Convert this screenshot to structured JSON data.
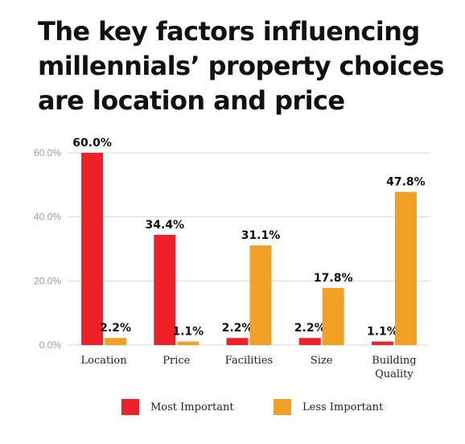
{
  "title_lines": [
    "The key factors influencing",
    "millennials’ property choices",
    "are location and price"
  ],
  "colors": {
    "most_important": "#ED2127",
    "less_important": "#F0A024",
    "grid": "#d9d9d9",
    "axis_text": "#9a9a9a"
  },
  "chart_data": {
    "type": "bar",
    "categories": [
      [
        "Location"
      ],
      [
        "Price"
      ],
      [
        "Facilities"
      ],
      [
        "Size"
      ],
      [
        "Building",
        "Quality"
      ]
    ],
    "series": [
      {
        "name": "Most Important",
        "values": [
          60.0,
          34.4,
          2.2,
          2.2,
          1.1
        ],
        "labels": [
          "60.0%",
          "34.4%",
          "2.2%",
          "2.2%",
          "1.1%"
        ]
      },
      {
        "name": "Less Important",
        "values": [
          2.2,
          1.1,
          31.1,
          17.8,
          47.8
        ],
        "labels": [
          "2.2%",
          "1.1%",
          "31.1%",
          "17.8%",
          "47.8%"
        ]
      }
    ],
    "yticks": [
      "0.0%",
      "20.0%",
      "40.0%",
      "60.0%"
    ],
    "ytick_values": [
      0,
      20,
      40,
      60
    ],
    "ylim": [
      0,
      60
    ],
    "grid": true,
    "legend": "bottom"
  }
}
